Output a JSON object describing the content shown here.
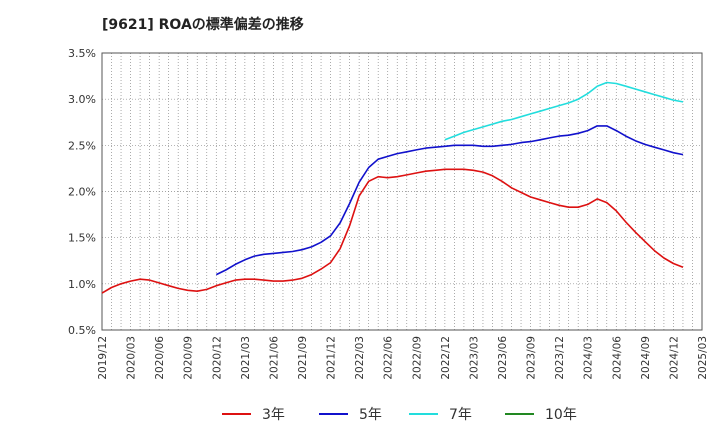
{
  "title": "[9621]  ROAの標準偏差の推移",
  "chart_data": {
    "type": "line",
    "xlabel": "",
    "ylabel": "",
    "x_start": "2019/12",
    "x_end": "2025/03",
    "x_tick_labels": [
      "2019/12",
      "2020/03",
      "2020/06",
      "2020/09",
      "2020/12",
      "2021/03",
      "2021/06",
      "2021/09",
      "2021/12",
      "2022/03",
      "2022/06",
      "2022/09",
      "2022/12",
      "2023/03",
      "2023/06",
      "2023/09",
      "2023/12",
      "2024/03",
      "2024/06",
      "2024/09",
      "2024/12",
      "2025/03"
    ],
    "ylim": [
      0.5,
      3.5
    ],
    "y_ticks": [
      0.5,
      1.0,
      1.5,
      2.0,
      2.5,
      3.0,
      3.5
    ],
    "y_tick_labels": [
      "0.5%",
      "1.0%",
      "1.5%",
      "2.0%",
      "2.5%",
      "3.0%",
      "3.5%"
    ],
    "grid": true,
    "legend_position": "bottom",
    "series": [
      {
        "name": "3年",
        "color": "#dd1111",
        "points": [
          [
            "2019/12",
            0.9
          ],
          [
            "2020/01",
            0.96
          ],
          [
            "2020/02",
            1.0
          ],
          [
            "2020/03",
            1.03
          ],
          [
            "2020/04",
            1.05
          ],
          [
            "2020/05",
            1.04
          ],
          [
            "2020/06",
            1.01
          ],
          [
            "2020/07",
            0.98
          ],
          [
            "2020/08",
            0.95
          ],
          [
            "2020/09",
            0.93
          ],
          [
            "2020/10",
            0.92
          ],
          [
            "2020/11",
            0.94
          ],
          [
            "2020/12",
            0.98
          ],
          [
            "2021/01",
            1.01
          ],
          [
            "2021/02",
            1.04
          ],
          [
            "2021/03",
            1.05
          ],
          [
            "2021/04",
            1.05
          ],
          [
            "2021/05",
            1.04
          ],
          [
            "2021/06",
            1.03
          ],
          [
            "2021/07",
            1.03
          ],
          [
            "2021/08",
            1.04
          ],
          [
            "2021/09",
            1.06
          ],
          [
            "2021/10",
            1.1
          ],
          [
            "2021/11",
            1.16
          ],
          [
            "2021/12",
            1.23
          ],
          [
            "2022/01",
            1.38
          ],
          [
            "2022/02",
            1.63
          ],
          [
            "2022/03",
            1.95
          ],
          [
            "2022/04",
            2.11
          ],
          [
            "2022/05",
            2.16
          ],
          [
            "2022/06",
            2.15
          ],
          [
            "2022/07",
            2.16
          ],
          [
            "2022/08",
            2.18
          ],
          [
            "2022/09",
            2.2
          ],
          [
            "2022/10",
            2.22
          ],
          [
            "2022/11",
            2.23
          ],
          [
            "2022/12",
            2.24
          ],
          [
            "2023/01",
            2.24
          ],
          [
            "2023/02",
            2.24
          ],
          [
            "2023/03",
            2.23
          ],
          [
            "2023/04",
            2.21
          ],
          [
            "2023/05",
            2.17
          ],
          [
            "2023/06",
            2.11
          ],
          [
            "2023/07",
            2.04
          ],
          [
            "2023/08",
            1.99
          ],
          [
            "2023/09",
            1.94
          ],
          [
            "2023/10",
            1.91
          ],
          [
            "2023/11",
            1.88
          ],
          [
            "2023/12",
            1.85
          ],
          [
            "2024/01",
            1.83
          ],
          [
            "2024/02",
            1.83
          ],
          [
            "2024/03",
            1.86
          ],
          [
            "2024/04",
            1.92
          ],
          [
            "2024/05",
            1.88
          ],
          [
            "2024/06",
            1.79
          ],
          [
            "2024/07",
            1.67
          ],
          [
            "2024/08",
            1.56
          ],
          [
            "2024/09",
            1.46
          ],
          [
            "2024/10",
            1.36
          ],
          [
            "2024/11",
            1.28
          ],
          [
            "2024/12",
            1.22
          ],
          [
            "2025/01",
            1.18
          ]
        ]
      },
      {
        "name": "5年",
        "color": "#1111cc",
        "points": [
          [
            "2020/12",
            1.1
          ],
          [
            "2021/01",
            1.15
          ],
          [
            "2021/02",
            1.21
          ],
          [
            "2021/03",
            1.26
          ],
          [
            "2021/04",
            1.3
          ],
          [
            "2021/05",
            1.32
          ],
          [
            "2021/06",
            1.33
          ],
          [
            "2021/07",
            1.34
          ],
          [
            "2021/08",
            1.35
          ],
          [
            "2021/09",
            1.37
          ],
          [
            "2021/10",
            1.4
          ],
          [
            "2021/11",
            1.45
          ],
          [
            "2021/12",
            1.52
          ],
          [
            "2022/01",
            1.66
          ],
          [
            "2022/02",
            1.87
          ],
          [
            "2022/03",
            2.1
          ],
          [
            "2022/04",
            2.26
          ],
          [
            "2022/05",
            2.35
          ],
          [
            "2022/06",
            2.38
          ],
          [
            "2022/07",
            2.41
          ],
          [
            "2022/08",
            2.43
          ],
          [
            "2022/09",
            2.45
          ],
          [
            "2022/10",
            2.47
          ],
          [
            "2022/11",
            2.48
          ],
          [
            "2022/12",
            2.49
          ],
          [
            "2023/01",
            2.5
          ],
          [
            "2023/02",
            2.5
          ],
          [
            "2023/03",
            2.5
          ],
          [
            "2023/04",
            2.49
          ],
          [
            "2023/05",
            2.49
          ],
          [
            "2023/06",
            2.5
          ],
          [
            "2023/07",
            2.51
          ],
          [
            "2023/08",
            2.53
          ],
          [
            "2023/09",
            2.54
          ],
          [
            "2023/10",
            2.56
          ],
          [
            "2023/11",
            2.58
          ],
          [
            "2023/12",
            2.6
          ],
          [
            "2024/01",
            2.61
          ],
          [
            "2024/02",
            2.63
          ],
          [
            "2024/03",
            2.66
          ],
          [
            "2024/04",
            2.71
          ],
          [
            "2024/05",
            2.71
          ],
          [
            "2024/06",
            2.66
          ],
          [
            "2024/07",
            2.6
          ],
          [
            "2024/08",
            2.55
          ],
          [
            "2024/09",
            2.51
          ],
          [
            "2024/10",
            2.48
          ],
          [
            "2024/11",
            2.45
          ],
          [
            "2024/12",
            2.42
          ],
          [
            "2025/01",
            2.4
          ]
        ]
      },
      {
        "name": "7年",
        "color": "#22dddd",
        "points": [
          [
            "2022/12",
            2.56
          ],
          [
            "2023/01",
            2.6
          ],
          [
            "2023/02",
            2.64
          ],
          [
            "2023/03",
            2.67
          ],
          [
            "2023/04",
            2.7
          ],
          [
            "2023/05",
            2.73
          ],
          [
            "2023/06",
            2.76
          ],
          [
            "2023/07",
            2.78
          ],
          [
            "2023/08",
            2.81
          ],
          [
            "2023/09",
            2.84
          ],
          [
            "2023/10",
            2.87
          ],
          [
            "2023/11",
            2.9
          ],
          [
            "2023/12",
            2.93
          ],
          [
            "2024/01",
            2.96
          ],
          [
            "2024/02",
            3.0
          ],
          [
            "2024/03",
            3.06
          ],
          [
            "2024/04",
            3.14
          ],
          [
            "2024/05",
            3.18
          ],
          [
            "2024/06",
            3.17
          ],
          [
            "2024/07",
            3.14
          ],
          [
            "2024/08",
            3.11
          ],
          [
            "2024/09",
            3.08
          ],
          [
            "2024/10",
            3.05
          ],
          [
            "2024/11",
            3.02
          ],
          [
            "2024/12",
            2.99
          ],
          [
            "2025/01",
            2.97
          ]
        ]
      },
      {
        "name": "10年",
        "color": "#228822",
        "points": []
      }
    ]
  }
}
